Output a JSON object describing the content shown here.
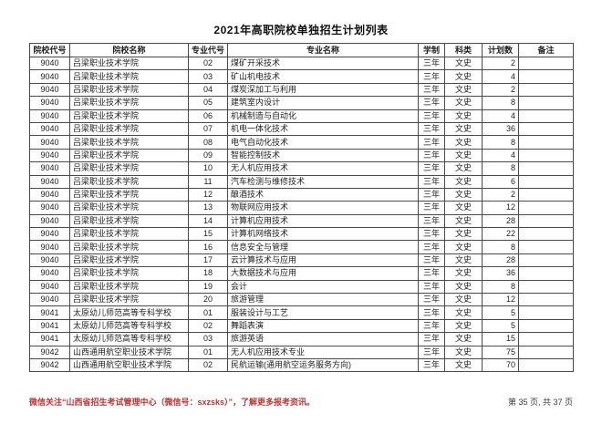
{
  "page": {
    "title": "2021年高职院校单独招生计划列表",
    "footer_left": "微信关注“山西省招生考试管理中心（微信号：sxzsks）”，了解更多报考资讯。",
    "footer_right": "第 35 页, 共 37 页"
  },
  "colors": {
    "footer_red": "#c23230",
    "table_border": "#4a4a4a"
  },
  "table": {
    "headers": [
      "院校代号",
      "院校名称",
      "专业代号",
      "专业名称",
      "学制",
      "科类",
      "计划数",
      "备注"
    ],
    "rows": [
      [
        "9040",
        "吕梁职业技术学院",
        "02",
        "煤矿开采技术",
        "三年",
        "文史",
        "2",
        ""
      ],
      [
        "9040",
        "吕梁职业技术学院",
        "03",
        "矿山机电技术",
        "三年",
        "文史",
        "4",
        ""
      ],
      [
        "9040",
        "吕梁职业技术学院",
        "04",
        "煤炭深加工与利用",
        "三年",
        "文史",
        "2",
        ""
      ],
      [
        "9040",
        "吕梁职业技术学院",
        "05",
        "建筑室内设计",
        "三年",
        "文史",
        "8",
        ""
      ],
      [
        "9040",
        "吕梁职业技术学院",
        "06",
        "机械制造与自动化",
        "三年",
        "文史",
        "4",
        ""
      ],
      [
        "9040",
        "吕梁职业技术学院",
        "07",
        "机电一体化技术",
        "三年",
        "文史",
        "36",
        ""
      ],
      [
        "9040",
        "吕梁职业技术学院",
        "08",
        "电气自动化技术",
        "三年",
        "文史",
        "8",
        ""
      ],
      [
        "9040",
        "吕梁职业技术学院",
        "09",
        "智能控制技术",
        "三年",
        "文史",
        "4",
        ""
      ],
      [
        "9040",
        "吕梁职业技术学院",
        "10",
        "无人机应用技术",
        "三年",
        "文史",
        "8",
        ""
      ],
      [
        "9040",
        "吕梁职业技术学院",
        "11",
        "汽车检测与维修技术",
        "三年",
        "文史",
        "6",
        ""
      ],
      [
        "9040",
        "吕梁职业技术学院",
        "12",
        "酿酒技术",
        "三年",
        "文史",
        "2",
        ""
      ],
      [
        "9040",
        "吕梁职业技术学院",
        "13",
        "物联网应用技术",
        "三年",
        "文史",
        "12",
        ""
      ],
      [
        "9040",
        "吕梁职业技术学院",
        "14",
        "计算机应用技术",
        "三年",
        "文史",
        "28",
        ""
      ],
      [
        "9040",
        "吕梁职业技术学院",
        "15",
        "计算机网络技术",
        "三年",
        "文史",
        "22",
        ""
      ],
      [
        "9040",
        "吕梁职业技术学院",
        "16",
        "信息安全与管理",
        "三年",
        "文史",
        "8",
        ""
      ],
      [
        "9040",
        "吕梁职业技术学院",
        "17",
        "云计算技术与应用",
        "三年",
        "文史",
        "28",
        ""
      ],
      [
        "9040",
        "吕梁职业技术学院",
        "18",
        "大数据技术与应用",
        "三年",
        "文史",
        "36",
        ""
      ],
      [
        "9040",
        "吕梁职业技术学院",
        "19",
        "会计",
        "三年",
        "文史",
        "8",
        ""
      ],
      [
        "9040",
        "吕梁职业技术学院",
        "20",
        "旅游管理",
        "三年",
        "文史",
        "12",
        ""
      ],
      [
        "9041",
        "太原幼儿师范高等专科学校",
        "01",
        "服装设计与工艺",
        "三年",
        "文史",
        "5",
        ""
      ],
      [
        "9041",
        "太原幼儿师范高等专科学校",
        "02",
        "舞蹈表演",
        "三年",
        "文史",
        "5",
        ""
      ],
      [
        "9041",
        "太原幼儿师范高等专科学校",
        "03",
        "旅游英语",
        "三年",
        "文史",
        "15",
        ""
      ],
      [
        "9042",
        "山西通用航空职业技术学院",
        "01",
        "无人机应用技术专业",
        "三年",
        "文史",
        "75",
        ""
      ],
      [
        "9042",
        "山西通用航空职业技术学院",
        "02",
        "民航运输(通用航空运务服务方向)",
        "三年",
        "文史",
        "70",
        ""
      ]
    ]
  }
}
